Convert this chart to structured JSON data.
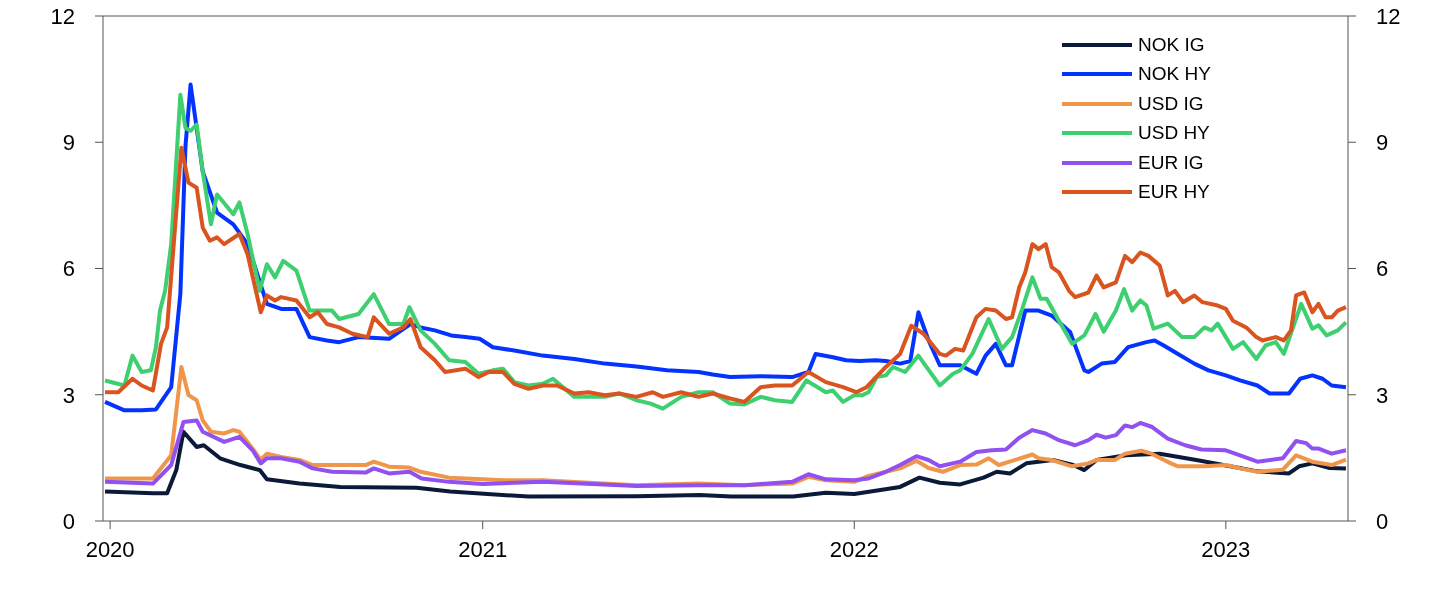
{
  "chart_data": {
    "type": "line",
    "xlim": [
      "2019-12-25",
      "2023-05-01"
    ],
    "xticks": [
      "2020",
      "2021",
      "2022",
      "2023"
    ],
    "ylim": [
      0,
      12
    ],
    "yticks": [
      0,
      3,
      6,
      9,
      12
    ],
    "y2lim": [
      0,
      12
    ],
    "y2ticks": [
      0,
      3,
      6,
      9,
      12
    ],
    "legend": "top right",
    "series": [
      {
        "name": "NOK IG",
        "color": "#0a1a38",
        "x": [
          "2019-12-27",
          "2020-02-12",
          "2020-02-26",
          "2020-03-06",
          "2020-03-13",
          "2020-03-26",
          "2020-04-02",
          "2020-04-18",
          "2020-05-08",
          "2020-05-27",
          "2020-06-03",
          "2020-07-05",
          "2020-08-14",
          "2020-10-28",
          "2020-11-30",
          "2021-02-15",
          "2021-06-01",
          "2021-08-02",
          "2021-09-02",
          "2021-11-02",
          "2021-12-04",
          "2022-01-01",
          "2022-02-15",
          "2022-03-06",
          "2022-03-26",
          "2022-04-15",
          "2022-05-08",
          "2022-05-21",
          "2022-06-03",
          "2022-06-19",
          "2022-07-15",
          "2022-08-04",
          "2022-08-15",
          "2022-08-27",
          "2022-09-25",
          "2022-10-28",
          "2022-12-03",
          "2023-01-08",
          "2023-02-01",
          "2023-03-04",
          "2023-03-14",
          "2023-03-27",
          "2023-04-13",
          "2023-04-29"
        ],
        "values": [
          0.7,
          0.66,
          0.66,
          1.21,
          2.12,
          1.76,
          1.8,
          1.49,
          1.33,
          1.21,
          0.99,
          0.89,
          0.81,
          0.79,
          0.7,
          0.58,
          0.59,
          0.62,
          0.58,
          0.58,
          0.67,
          0.64,
          0.81,
          1.03,
          0.91,
          0.87,
          1.03,
          1.17,
          1.13,
          1.37,
          1.45,
          1.33,
          1.21,
          1.45,
          1.56,
          1.6,
          1.45,
          1.29,
          1.18,
          1.13,
          1.3,
          1.37,
          1.26,
          1.25
        ]
      },
      {
        "name": "NOK HY",
        "color": "#0433ff",
        "x": [
          "2019-12-27",
          "2020-01-15",
          "2020-02-01",
          "2020-02-15",
          "2020-03-01",
          "2020-03-10",
          "2020-03-15",
          "2020-03-20",
          "2020-04-01",
          "2020-04-15",
          "2020-05-01",
          "2020-05-15",
          "2020-06-03",
          "2020-06-17",
          "2020-07-02",
          "2020-07-15",
          "2020-08-01",
          "2020-08-13",
          "2020-09-01",
          "2020-10-01",
          "2020-10-22",
          "2020-11-01",
          "2020-11-15",
          "2020-12-01",
          "2020-12-15",
          "2020-12-29",
          "2021-01-11",
          "2021-02-01",
          "2021-03-01",
          "2021-04-01",
          "2021-05-01",
          "2021-06-01",
          "2021-07-01",
          "2021-08-01",
          "2021-08-15",
          "2021-09-01",
          "2021-10-01",
          "2021-11-01",
          "2021-11-17",
          "2021-11-24",
          "2021-12-11",
          "2021-12-24",
          "2022-01-06",
          "2022-01-22",
          "2022-02-01",
          "2022-02-15",
          "2022-02-25",
          "2022-03-05",
          "2022-03-15",
          "2022-03-26",
          "2022-04-15",
          "2022-05-01",
          "2022-05-10",
          "2022-05-20",
          "2022-05-30",
          "2022-06-05",
          "2022-06-18",
          "2022-07-01",
          "2022-07-14",
          "2022-08-01",
          "2022-08-15",
          "2022-08-19",
          "2022-09-01",
          "2022-09-14",
          "2022-09-27",
          "2022-10-15",
          "2022-10-23",
          "2022-11-01",
          "2022-11-15",
          "2022-12-01",
          "2022-12-15",
          "2023-01-01",
          "2023-01-15",
          "2023-02-01",
          "2023-02-13",
          "2023-03-04",
          "2023-03-15",
          "2023-03-27",
          "2023-04-06",
          "2023-04-15",
          "2023-04-29"
        ],
        "values": [
          2.83,
          2.63,
          2.63,
          2.65,
          3.18,
          5.4,
          8.9,
          10.37,
          8.3,
          7.33,
          7.05,
          6.58,
          5.16,
          5.04,
          5.04,
          4.37,
          4.29,
          4.25,
          4.37,
          4.33,
          4.68,
          4.6,
          4.53,
          4.41,
          4.37,
          4.33,
          4.13,
          4.05,
          3.93,
          3.85,
          3.74,
          3.67,
          3.58,
          3.54,
          3.48,
          3.42,
          3.44,
          3.42,
          3.54,
          3.97,
          3.89,
          3.82,
          3.8,
          3.82,
          3.8,
          3.74,
          3.8,
          4.96,
          4.29,
          3.7,
          3.7,
          3.5,
          3.93,
          4.21,
          3.7,
          3.7,
          5.0,
          5.0,
          4.88,
          4.49,
          3.58,
          3.54,
          3.74,
          3.78,
          4.13,
          4.25,
          4.29,
          4.17,
          3.97,
          3.74,
          3.58,
          3.46,
          3.34,
          3.22,
          3.03,
          3.03,
          3.38,
          3.46,
          3.38,
          3.22,
          3.18
        ]
      },
      {
        "name": "USD IG",
        "color": "#f0964b",
        "x": [
          "2019-12-27",
          "2020-02-12",
          "2020-03-01",
          "2020-03-11",
          "2020-03-18",
          "2020-03-26",
          "2020-04-01",
          "2020-04-09",
          "2020-04-22",
          "2020-05-01",
          "2020-05-07",
          "2020-05-20",
          "2020-05-28",
          "2020-06-03",
          "2020-06-17",
          "2020-07-05",
          "2020-07-18",
          "2020-08-13",
          "2020-09-08",
          "2020-09-16",
          "2020-10-01",
          "2020-10-21",
          "2020-11-01",
          "2020-11-29",
          "2021-01-01",
          "2021-01-21",
          "2021-03-01",
          "2021-06-01",
          "2021-08-01",
          "2021-09-15",
          "2021-11-01",
          "2021-11-17",
          "2021-12-04",
          "2022-01-01",
          "2022-01-15",
          "2022-02-15",
          "2022-03-03",
          "2022-03-15",
          "2022-03-29",
          "2022-04-15",
          "2022-05-01",
          "2022-05-13",
          "2022-05-23",
          "2022-06-05",
          "2022-06-25",
          "2022-07-01",
          "2022-07-14",
          "2022-08-03",
          "2022-08-19",
          "2022-08-27",
          "2022-09-14",
          "2022-09-24",
          "2022-10-10",
          "2022-10-20",
          "2022-11-08",
          "2022-11-15",
          "2022-12-11",
          "2023-01-01",
          "2023-01-15",
          "2023-02-01",
          "2023-02-26",
          "2023-03-11",
          "2023-03-27",
          "2023-04-15",
          "2023-04-29"
        ],
        "values": [
          1.01,
          1.01,
          1.56,
          3.66,
          2.99,
          2.87,
          2.39,
          2.12,
          2.08,
          2.16,
          2.12,
          1.72,
          1.45,
          1.6,
          1.52,
          1.45,
          1.33,
          1.33,
          1.33,
          1.41,
          1.29,
          1.27,
          1.17,
          1.03,
          0.99,
          0.97,
          0.97,
          0.85,
          0.89,
          0.85,
          0.89,
          1.05,
          0.97,
          0.93,
          1.07,
          1.25,
          1.43,
          1.26,
          1.17,
          1.33,
          1.34,
          1.49,
          1.33,
          1.43,
          1.58,
          1.49,
          1.45,
          1.3,
          1.37,
          1.45,
          1.45,
          1.6,
          1.67,
          1.6,
          1.37,
          1.3,
          1.3,
          1.33,
          1.25,
          1.17,
          1.22,
          1.56,
          1.41,
          1.33,
          1.46
        ]
      },
      {
        "name": "USD HY",
        "color": "#3ecf70",
        "x": [
          "2019-12-27",
          "2020-01-15",
          "2020-01-23",
          "2020-02-01",
          "2020-02-10",
          "2020-02-15",
          "2020-02-19",
          "2020-02-24",
          "2020-03-01",
          "2020-03-10",
          "2020-03-15",
          "2020-03-20",
          "2020-03-26",
          "2020-04-01",
          "2020-04-09",
          "2020-04-15",
          "2020-05-01",
          "2020-05-07",
          "2020-05-15",
          "2020-05-27",
          "2020-06-03",
          "2020-06-11",
          "2020-06-19",
          "2020-07-02",
          "2020-07-15",
          "2020-08-06",
          "2020-08-13",
          "2020-09-01",
          "2020-09-16",
          "2020-10-01",
          "2020-10-15",
          "2020-10-21",
          "2020-11-01",
          "2020-11-15",
          "2020-11-29",
          "2020-12-15",
          "2020-12-28",
          "2021-01-11",
          "2021-01-21",
          "2021-02-01",
          "2021-02-15",
          "2021-03-01",
          "2021-03-11",
          "2021-04-01",
          "2021-05-01",
          "2021-05-15",
          "2021-06-01",
          "2021-06-15",
          "2021-06-27",
          "2021-07-15",
          "2021-08-01",
          "2021-08-15",
          "2021-09-01",
          "2021-09-15",
          "2021-10-01",
          "2021-10-15",
          "2021-11-01",
          "2021-11-15",
          "2021-12-04",
          "2021-12-11",
          "2021-12-21",
          "2022-01-01",
          "2022-01-09",
          "2022-01-15",
          "2022-01-23",
          "2022-02-01",
          "2022-02-08",
          "2022-02-20",
          "2022-03-05",
          "2022-03-26",
          "2022-04-08",
          "2022-04-15",
          "2022-04-27",
          "2022-05-13",
          "2022-05-26",
          "2022-06-05",
          "2022-06-15",
          "2022-06-25",
          "2022-07-03",
          "2022-07-09",
          "2022-07-21",
          "2022-08-03",
          "2022-08-15",
          "2022-08-26",
          "2022-09-03",
          "2022-09-15",
          "2022-09-23",
          "2022-10-01",
          "2022-10-09",
          "2022-10-15",
          "2022-10-22",
          "2022-11-05",
          "2022-11-19",
          "2022-12-01",
          "2022-12-11",
          "2022-12-18",
          "2022-12-24",
          "2023-01-08",
          "2023-01-18",
          "2023-01-31",
          "2023-02-09",
          "2023-02-19",
          "2023-02-27",
          "2023-03-16",
          "2023-03-27",
          "2023-04-02",
          "2023-04-10",
          "2023-04-21",
          "2023-04-29"
        ],
        "values": [
          3.34,
          3.22,
          3.93,
          3.54,
          3.58,
          4.13,
          5.0,
          5.47,
          6.58,
          10.13,
          9.34,
          9.27,
          9.42,
          8.3,
          7.05,
          7.76,
          7.29,
          7.57,
          6.82,
          5.47,
          6.1,
          5.79,
          6.18,
          5.95,
          5.0,
          5.0,
          4.8,
          4.92,
          5.39,
          4.68,
          4.68,
          5.08,
          4.53,
          4.21,
          3.82,
          3.78,
          3.5,
          3.58,
          3.62,
          3.3,
          3.22,
          3.26,
          3.38,
          2.95,
          2.95,
          3.03,
          2.87,
          2.79,
          2.67,
          2.95,
          3.06,
          3.06,
          2.79,
          2.77,
          2.95,
          2.87,
          2.83,
          3.34,
          3.06,
          3.1,
          2.83,
          2.99,
          2.99,
          3.06,
          3.42,
          3.46,
          3.66,
          3.54,
          3.93,
          3.22,
          3.5,
          3.58,
          3.97,
          4.8,
          4.09,
          4.37,
          5.04,
          5.79,
          5.28,
          5.28,
          4.76,
          4.21,
          4.41,
          4.92,
          4.5,
          5.0,
          5.51,
          5.0,
          5.24,
          5.12,
          4.57,
          4.69,
          4.37,
          4.37,
          4.6,
          4.53,
          4.69,
          4.09,
          4.25,
          3.85,
          4.17,
          4.25,
          3.97,
          5.16,
          4.57,
          4.65,
          4.41,
          4.53,
          4.72
        ]
      },
      {
        "name": "EUR IG",
        "color": "#9150f0",
        "x": [
          "2019-12-27",
          "2020-02-12",
          "2020-03-01",
          "2020-03-13",
          "2020-03-26",
          "2020-04-01",
          "2020-04-22",
          "2020-05-07",
          "2020-05-20",
          "2020-05-28",
          "2020-06-03",
          "2020-06-17",
          "2020-07-05",
          "2020-07-18",
          "2020-08-06",
          "2020-09-08",
          "2020-09-16",
          "2020-10-01",
          "2020-10-21",
          "2020-11-02",
          "2020-11-29",
          "2021-01-01",
          "2021-03-01",
          "2021-06-01",
          "2021-08-01",
          "2021-09-15",
          "2021-11-01",
          "2021-11-17",
          "2021-12-04",
          "2022-01-01",
          "2022-01-15",
          "2022-02-01",
          "2022-02-15",
          "2022-03-03",
          "2022-03-15",
          "2022-03-26",
          "2022-04-15",
          "2022-05-01",
          "2022-05-16",
          "2022-05-30",
          "2022-06-12",
          "2022-06-25",
          "2022-07-08",
          "2022-07-21",
          "2022-08-06",
          "2022-08-19",
          "2022-08-27",
          "2022-09-05",
          "2022-09-15",
          "2022-09-24",
          "2022-10-01",
          "2022-10-09",
          "2022-10-20",
          "2022-11-05",
          "2022-11-22",
          "2022-12-08",
          "2023-01-01",
          "2023-01-15",
          "2023-02-01",
          "2023-02-26",
          "2023-03-11",
          "2023-03-21",
          "2023-03-27",
          "2023-04-02",
          "2023-04-15",
          "2023-04-29"
        ],
        "values": [
          0.93,
          0.89,
          1.33,
          2.35,
          2.39,
          2.12,
          1.88,
          2.0,
          1.68,
          1.37,
          1.49,
          1.49,
          1.41,
          1.25,
          1.17,
          1.15,
          1.25,
          1.13,
          1.17,
          1.01,
          0.93,
          0.88,
          0.93,
          0.83,
          0.85,
          0.85,
          0.93,
          1.11,
          0.99,
          0.97,
          1.01,
          1.17,
          1.33,
          1.54,
          1.45,
          1.3,
          1.41,
          1.64,
          1.68,
          1.7,
          1.98,
          2.16,
          2.08,
          1.92,
          1.8,
          1.92,
          2.05,
          1.98,
          2.04,
          2.27,
          2.23,
          2.33,
          2.24,
          1.96,
          1.8,
          1.7,
          1.68,
          1.56,
          1.41,
          1.49,
          1.9,
          1.85,
          1.72,
          1.72,
          1.6,
          1.68
        ]
      },
      {
        "name": "EUR HY",
        "color": "#d9541e",
        "x": [
          "2019-12-27",
          "2020-01-09",
          "2020-01-23",
          "2020-02-01",
          "2020-02-12",
          "2020-02-20",
          "2020-02-26",
          "2020-03-11",
          "2020-03-18",
          "2020-03-26",
          "2020-04-01",
          "2020-04-08",
          "2020-04-15",
          "2020-04-22",
          "2020-05-07",
          "2020-05-15",
          "2020-05-28",
          "2020-06-03",
          "2020-06-11",
          "2020-06-17",
          "2020-07-02",
          "2020-07-15",
          "2020-07-23",
          "2020-08-01",
          "2020-08-13",
          "2020-08-26",
          "2020-09-10",
          "2020-09-16",
          "2020-10-01",
          "2020-10-15",
          "2020-10-22",
          "2020-11-01",
          "2020-11-15",
          "2020-11-25",
          "2020-12-15",
          "2020-12-28",
          "2021-01-07",
          "2021-01-21",
          "2021-02-01",
          "2021-02-15",
          "2021-03-01",
          "2021-03-15",
          "2021-04-01",
          "2021-04-15",
          "2021-05-01",
          "2021-05-15",
          "2021-06-01",
          "2021-06-17",
          "2021-06-27",
          "2021-07-15",
          "2021-08-01",
          "2021-08-15",
          "2021-09-01",
          "2021-09-15",
          "2021-10-01",
          "2021-10-15",
          "2021-11-01",
          "2021-11-17",
          "2021-12-04",
          "2021-12-21",
          "2022-01-03",
          "2022-01-13",
          "2022-02-01",
          "2022-02-15",
          "2022-02-26",
          "2022-03-10",
          "2022-03-26",
          "2022-04-01",
          "2022-04-10",
          "2022-04-18",
          "2022-05-01",
          "2022-05-10",
          "2022-05-20",
          "2022-05-30",
          "2022-06-05",
          "2022-06-12",
          "2022-06-18",
          "2022-06-25",
          "2022-07-01",
          "2022-07-08",
          "2022-07-14",
          "2022-07-21",
          "2022-07-31",
          "2022-08-06",
          "2022-08-19",
          "2022-08-27",
          "2022-09-03",
          "2022-09-15",
          "2022-09-24",
          "2022-10-01",
          "2022-10-09",
          "2022-10-17",
          "2022-10-28",
          "2022-11-05",
          "2022-11-12",
          "2022-11-20",
          "2022-12-01",
          "2022-12-09",
          "2022-12-24",
          "2023-01-01",
          "2023-01-08",
          "2023-01-21",
          "2023-01-31",
          "2023-02-06",
          "2023-02-19",
          "2023-02-27",
          "2023-03-06",
          "2023-03-11",
          "2023-03-19",
          "2023-03-27",
          "2023-04-02",
          "2023-04-09",
          "2023-04-15",
          "2023-04-21",
          "2023-04-29"
        ],
        "values": [
          3.06,
          3.06,
          3.38,
          3.22,
          3.1,
          4.21,
          4.6,
          8.87,
          8.04,
          7.92,
          6.97,
          6.66,
          6.74,
          6.58,
          6.82,
          6.34,
          4.96,
          5.36,
          5.24,
          5.32,
          5.24,
          4.84,
          4.96,
          4.68,
          4.6,
          4.45,
          4.37,
          4.84,
          4.45,
          4.6,
          4.8,
          4.13,
          3.82,
          3.54,
          3.62,
          3.42,
          3.54,
          3.54,
          3.26,
          3.14,
          3.22,
          3.22,
          3.03,
          3.06,
          2.99,
          3.03,
          2.95,
          3.06,
          2.95,
          3.06,
          2.95,
          3.03,
          2.91,
          2.83,
          3.18,
          3.22,
          3.22,
          3.54,
          3.3,
          3.18,
          3.06,
          3.18,
          3.66,
          3.97,
          4.64,
          4.45,
          3.97,
          3.93,
          4.09,
          4.05,
          4.84,
          5.04,
          5.0,
          4.8,
          4.84,
          5.55,
          5.91,
          6.58,
          6.46,
          6.58,
          6.03,
          5.91,
          5.47,
          5.32,
          5.43,
          5.83,
          5.55,
          5.67,
          6.3,
          6.15,
          6.38,
          6.3,
          6.07,
          5.36,
          5.47,
          5.2,
          5.36,
          5.2,
          5.12,
          5.04,
          4.76,
          4.6,
          4.37,
          4.29,
          4.37,
          4.29,
          4.53,
          5.36,
          5.43,
          4.96,
          5.16,
          4.84,
          4.84,
          5.0,
          5.08
        ]
      }
    ]
  }
}
